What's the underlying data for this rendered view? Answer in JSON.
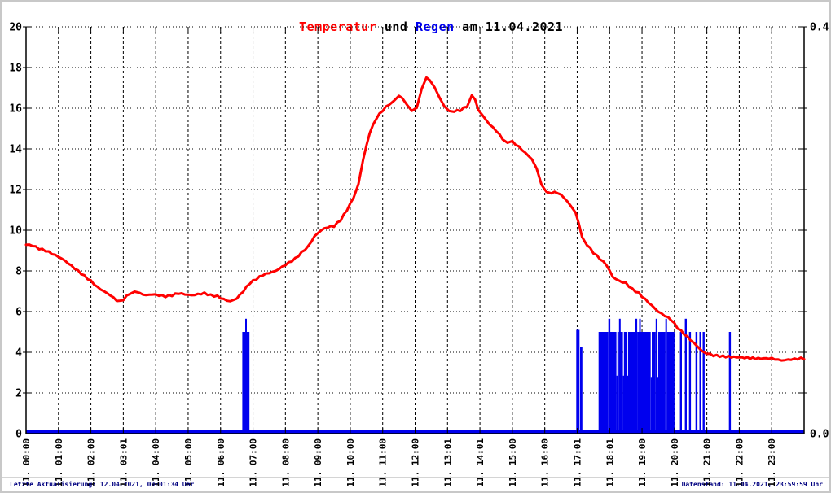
{
  "title": {
    "part_temperature": "Temperatur",
    "part_and": " und ",
    "part_rain": "Regen",
    "part_date": " am 11.04.2021"
  },
  "footer": {
    "left": "Letzte Aktualisierung: 12.04.2021, 00:01:34 Uhr",
    "right": "Datenstand: 11.04.2021, 23:59:59 Uhr"
  },
  "colors": {
    "temperature": "#ff0000",
    "rain": "#0000ee",
    "axis": "#000000",
    "grid": "#000000",
    "footer_text": "#000080",
    "title_text": "#000000",
    "border": "#c8c8c8"
  },
  "chart_data": {
    "type": "line+bar",
    "title": "Temperatur und Regen am 11.04.2021",
    "grid": true,
    "x_axis": {
      "range_hours": [
        0,
        24
      ],
      "tick_labels": [
        "11. 00:00",
        "11. 01:00",
        "11. 02:00",
        "11. 03:01",
        "11. 04:00",
        "11. 05:00",
        "11. 06:00",
        "11. 07:00",
        "11. 08:00",
        "11. 09:00",
        "11. 10:00",
        "11. 11:00",
        "11. 12:00",
        "11. 13:01",
        "11. 14:01",
        "11. 15:00",
        "11. 16:00",
        "11. 17:01",
        "11. 18:01",
        "11. 19:00",
        "11. 20:00",
        "11. 21:00",
        "11. 22:00",
        "11. 23:00"
      ]
    },
    "y_left_axis": {
      "min": 0,
      "max": 20,
      "tick_step": 2,
      "tick_labels": [
        "0",
        "2",
        "4",
        "6",
        "8",
        "10",
        "12",
        "14",
        "16",
        "18",
        "20"
      ]
    },
    "y_right_axis": {
      "min": 0.0,
      "max": 0.4,
      "tick_step": 0.04,
      "visible_labels": {
        "top": "0.4",
        "bottom": "0.0"
      }
    },
    "series": [
      {
        "name": "Temperatur",
        "type": "line",
        "axis": "left",
        "color": "#ff0000",
        "points_hour_degC": [
          [
            0.0,
            9.3
          ],
          [
            0.2,
            9.25
          ],
          [
            0.4,
            9.1
          ],
          [
            0.6,
            9.0
          ],
          [
            0.8,
            8.85
          ],
          [
            1.0,
            8.7
          ],
          [
            1.2,
            8.5
          ],
          [
            1.4,
            8.25
          ],
          [
            1.6,
            8.0
          ],
          [
            1.8,
            7.75
          ],
          [
            2.0,
            7.5
          ],
          [
            2.2,
            7.2
          ],
          [
            2.4,
            7.0
          ],
          [
            2.6,
            6.8
          ],
          [
            2.8,
            6.55
          ],
          [
            2.9,
            6.5
          ],
          [
            3.0,
            6.6
          ],
          [
            3.2,
            6.9
          ],
          [
            3.35,
            7.0
          ],
          [
            3.5,
            6.9
          ],
          [
            3.7,
            6.8
          ],
          [
            3.9,
            6.85
          ],
          [
            4.1,
            6.8
          ],
          [
            4.3,
            6.75
          ],
          [
            4.5,
            6.8
          ],
          [
            4.7,
            6.9
          ],
          [
            4.9,
            6.85
          ],
          [
            5.1,
            6.8
          ],
          [
            5.3,
            6.85
          ],
          [
            5.5,
            6.9
          ],
          [
            5.7,
            6.8
          ],
          [
            5.9,
            6.75
          ],
          [
            6.1,
            6.6
          ],
          [
            6.3,
            6.5
          ],
          [
            6.5,
            6.65
          ],
          [
            6.7,
            7.0
          ],
          [
            6.9,
            7.4
          ],
          [
            7.1,
            7.6
          ],
          [
            7.3,
            7.8
          ],
          [
            7.5,
            7.9
          ],
          [
            7.7,
            8.0
          ],
          [
            7.9,
            8.2
          ],
          [
            8.1,
            8.4
          ],
          [
            8.3,
            8.6
          ],
          [
            8.5,
            8.9
          ],
          [
            8.7,
            9.2
          ],
          [
            8.9,
            9.7
          ],
          [
            9.1,
            10.0
          ],
          [
            9.3,
            10.15
          ],
          [
            9.5,
            10.2
          ],
          [
            9.7,
            10.5
          ],
          [
            9.9,
            11.0
          ],
          [
            10.1,
            11.6
          ],
          [
            10.25,
            12.3
          ],
          [
            10.4,
            13.5
          ],
          [
            10.6,
            14.8
          ],
          [
            10.8,
            15.5
          ],
          [
            11.0,
            15.9
          ],
          [
            11.2,
            16.2
          ],
          [
            11.35,
            16.4
          ],
          [
            11.5,
            16.6
          ],
          [
            11.6,
            16.5
          ],
          [
            11.75,
            16.2
          ],
          [
            11.9,
            15.9
          ],
          [
            12.05,
            16.0
          ],
          [
            12.2,
            16.9
          ],
          [
            12.35,
            17.5
          ],
          [
            12.45,
            17.4
          ],
          [
            12.6,
            17.0
          ],
          [
            12.75,
            16.5
          ],
          [
            12.9,
            16.1
          ],
          [
            13.05,
            15.9
          ],
          [
            13.2,
            15.85
          ],
          [
            13.4,
            15.9
          ],
          [
            13.6,
            16.1
          ],
          [
            13.75,
            16.65
          ],
          [
            13.85,
            16.4
          ],
          [
            13.95,
            15.95
          ],
          [
            14.1,
            15.6
          ],
          [
            14.3,
            15.2
          ],
          [
            14.5,
            14.9
          ],
          [
            14.7,
            14.5
          ],
          [
            14.85,
            14.3
          ],
          [
            15.0,
            14.35
          ],
          [
            15.2,
            14.1
          ],
          [
            15.4,
            13.8
          ],
          [
            15.6,
            13.5
          ],
          [
            15.75,
            13.0
          ],
          [
            15.9,
            12.2
          ],
          [
            16.05,
            11.9
          ],
          [
            16.2,
            11.85
          ],
          [
            16.4,
            11.85
          ],
          [
            16.6,
            11.6
          ],
          [
            16.8,
            11.2
          ],
          [
            16.95,
            10.9
          ],
          [
            17.05,
            10.3
          ],
          [
            17.15,
            9.7
          ],
          [
            17.3,
            9.3
          ],
          [
            17.5,
            8.9
          ],
          [
            17.7,
            8.6
          ],
          [
            17.9,
            8.3
          ],
          [
            18.1,
            7.7
          ],
          [
            18.3,
            7.5
          ],
          [
            18.5,
            7.4
          ],
          [
            18.7,
            7.1
          ],
          [
            18.9,
            6.9
          ],
          [
            19.1,
            6.6
          ],
          [
            19.3,
            6.3
          ],
          [
            19.5,
            6.0
          ],
          [
            19.7,
            5.8
          ],
          [
            19.9,
            5.6
          ],
          [
            20.1,
            5.2
          ],
          [
            20.3,
            4.9
          ],
          [
            20.5,
            4.6
          ],
          [
            20.7,
            4.3
          ],
          [
            20.85,
            4.1
          ],
          [
            21.0,
            3.95
          ],
          [
            21.2,
            3.85
          ],
          [
            21.5,
            3.8
          ],
          [
            22.0,
            3.75
          ],
          [
            22.5,
            3.7
          ],
          [
            23.0,
            3.7
          ],
          [
            23.3,
            3.6
          ],
          [
            23.6,
            3.65
          ],
          [
            23.9,
            3.7
          ],
          [
            24.0,
            3.7
          ]
        ]
      },
      {
        "name": "Regen",
        "type": "bar",
        "axis": "right",
        "color": "#0000ee",
        "baseline_mm": 0.0,
        "bars_from_to_mm": [
          [
            6.67,
            6.76,
            0.1
          ],
          [
            6.76,
            6.79,
            0.113
          ],
          [
            6.79,
            6.89,
            0.1
          ],
          [
            16.97,
            17.07,
            0.102
          ],
          [
            17.09,
            17.16,
            0.085
          ],
          [
            17.66,
            17.96,
            0.1
          ],
          [
            17.96,
            18.02,
            0.113
          ],
          [
            18.02,
            18.21,
            0.1
          ],
          [
            18.21,
            18.24,
            0.057
          ],
          [
            18.24,
            18.29,
            0.1
          ],
          [
            18.29,
            18.33,
            0.113
          ],
          [
            18.33,
            18.41,
            0.1
          ],
          [
            18.41,
            18.44,
            0.057
          ],
          [
            18.44,
            18.54,
            0.1
          ],
          [
            18.54,
            18.57,
            0.057
          ],
          [
            18.57,
            18.79,
            0.1
          ],
          [
            18.79,
            18.85,
            0.113
          ],
          [
            18.85,
            18.91,
            0.1
          ],
          [
            18.91,
            18.96,
            0.113
          ],
          [
            18.96,
            19.27,
            0.1
          ],
          [
            19.27,
            19.3,
            0.055
          ],
          [
            19.3,
            19.42,
            0.1
          ],
          [
            19.42,
            19.47,
            0.113
          ],
          [
            19.47,
            19.5,
            0.055
          ],
          [
            19.5,
            19.72,
            0.1
          ],
          [
            19.72,
            19.77,
            0.113
          ],
          [
            19.77,
            20.0,
            0.1
          ],
          [
            20.17,
            20.23,
            0.1
          ],
          [
            20.32,
            20.38,
            0.113
          ],
          [
            20.45,
            20.51,
            0.1
          ],
          [
            20.65,
            20.71,
            0.1
          ],
          [
            20.77,
            20.83,
            0.1
          ],
          [
            20.87,
            20.93,
            0.1
          ],
          [
            21.68,
            21.74,
            0.1
          ]
        ]
      }
    ]
  }
}
